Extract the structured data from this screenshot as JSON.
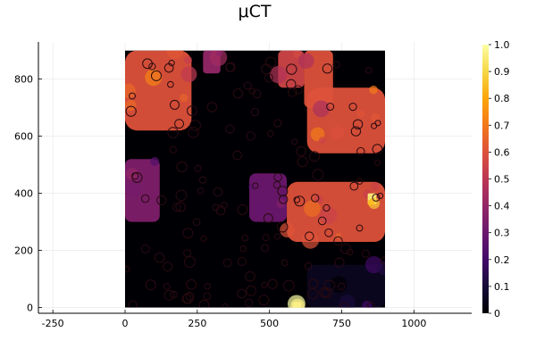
{
  "chart_data": {
    "type": "heatmap",
    "title": "μCT",
    "xlabel": "",
    "ylabel": "",
    "xlim": [
      -300,
      1200
    ],
    "ylim": [
      -20,
      930
    ],
    "x_ticks": [
      -250,
      0,
      250,
      500,
      750,
      1000
    ],
    "y_ticks": [
      0,
      200,
      400,
      600,
      800
    ],
    "grid": true,
    "image_extent": {
      "x": [
        0,
        900
      ],
      "y": [
        0,
        900
      ]
    },
    "colorbar": {
      "colormap": "inferno",
      "range": [
        0,
        1
      ],
      "ticks": [
        0,
        0.1,
        0.2,
        0.3,
        0.4,
        0.5,
        0.6,
        0.7,
        0.8,
        0.9,
        1.0
      ],
      "tick_labels": [
        "0",
        "0.1",
        "0.2",
        "0.3",
        "0.4",
        "0.5",
        "0.6",
        "0.7",
        "0.8",
        "0.9",
        "1.0"
      ]
    },
    "regions": [
      {
        "x": [
          0,
          230
        ],
        "y": [
          620,
          900
        ],
        "value": 0.6
      },
      {
        "x": [
          270,
          330
        ],
        "y": [
          820,
          900
        ],
        "value": 0.4
      },
      {
        "x": [
          530,
          620
        ],
        "y": [
          770,
          900
        ],
        "value": 0.55
      },
      {
        "x": [
          620,
          720
        ],
        "y": [
          700,
          900
        ],
        "value": 0.6
      },
      {
        "x": [
          630,
          900
        ],
        "y": [
          540,
          770
        ],
        "value": 0.6
      },
      {
        "x": [
          0,
          120
        ],
        "y": [
          300,
          520
        ],
        "value": 0.35
      },
      {
        "x": [
          430,
          560
        ],
        "y": [
          300,
          470
        ],
        "value": 0.3
      },
      {
        "x": [
          560,
          900
        ],
        "y": [
          230,
          440
        ],
        "value": 0.6
      },
      {
        "x": [
          840,
          870
        ],
        "y": [
          360,
          400
        ],
        "value": 0.95
      },
      {
        "x": [
          580,
          610
        ],
        "y": [
          0,
          20
        ],
        "value": 0.95
      },
      {
        "x": [
          630,
          900
        ],
        "y": [
          0,
          150
        ],
        "value": 0.05
      }
    ]
  }
}
